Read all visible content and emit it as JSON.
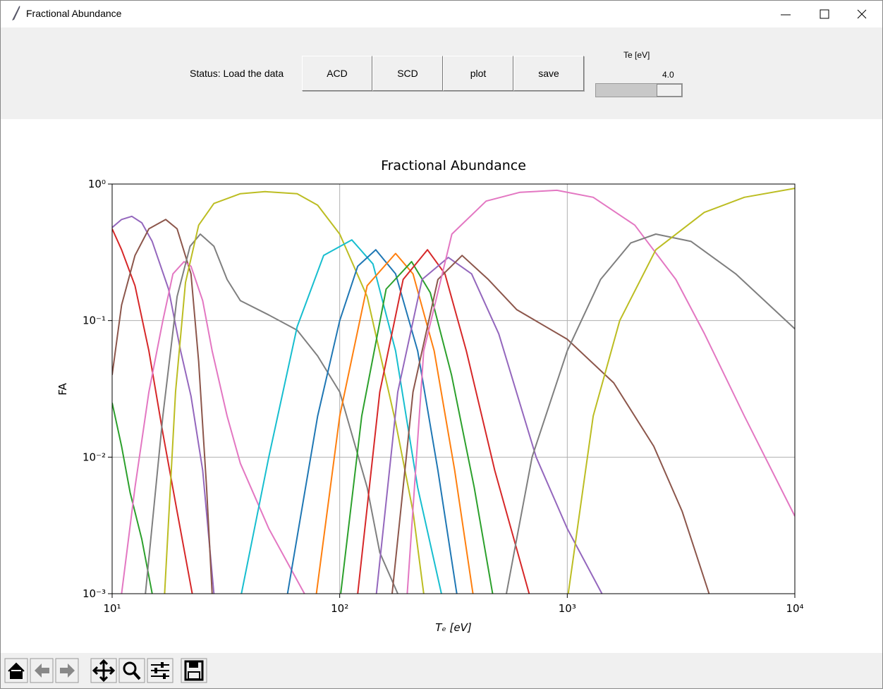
{
  "window": {
    "title": "Fractional Abundance",
    "status": "Status: Load the data",
    "buttons": [
      "ACD",
      "SCD",
      "plot",
      "save"
    ],
    "slider_label": "Te [eV]",
    "slider_value": "4.0"
  },
  "chart_data": {
    "type": "line",
    "title": "Fractional Abundance",
    "x_label": "Tₑ [eV]",
    "y_label": "FA",
    "xscale": "log",
    "yscale": "log",
    "grid": true,
    "xlim": [
      10,
      10000
    ],
    "ylim": [
      0.001,
      1
    ],
    "xticks": [
      {
        "value": 10,
        "label": "10¹"
      },
      {
        "value": 100,
        "label": "10²"
      },
      {
        "value": 1000,
        "label": "10³"
      },
      {
        "value": 10000,
        "label": "10⁴"
      }
    ],
    "yticks": [
      {
        "value": 1,
        "label": "10⁰"
      },
      {
        "value": 0.1,
        "label": "10⁻¹"
      },
      {
        "value": 0.01,
        "label": "10⁻²"
      },
      {
        "value": 0.001,
        "label": "10⁻³"
      }
    ],
    "series": [
      {
        "color": "#2ca02c",
        "x": [
          10,
          11,
          12,
          13.5,
          15
        ],
        "values": [
          0.025,
          0.012,
          0.0055,
          0.0025,
          0.001
        ]
      },
      {
        "color": "#d62728",
        "x": [
          10,
          11,
          12.6,
          14.5,
          16.7,
          19.3,
          22.5
        ],
        "values": [
          0.47,
          0.33,
          0.18,
          0.06,
          0.015,
          0.004,
          0.001
        ]
      },
      {
        "color": "#9467bd",
        "x": [
          10,
          11,
          12.2,
          13.5,
          15,
          17.7,
          20,
          22.2,
          25,
          28
        ],
        "values": [
          0.48,
          0.55,
          0.58,
          0.52,
          0.38,
          0.17,
          0.06,
          0.028,
          0.008,
          0.001
        ]
      },
      {
        "color": "#8c564b",
        "x": [
          10,
          11,
          12.6,
          14.5,
          17.2,
          19.3,
          22.2,
          24,
          26,
          27.5
        ],
        "values": [
          0.04,
          0.13,
          0.3,
          0.47,
          0.55,
          0.47,
          0.22,
          0.05,
          0.006,
          0.001
        ]
      },
      {
        "color": "#e377c2",
        "x": [
          11,
          12.6,
          14.5,
          16.7,
          18.5,
          20.7,
          22.2,
          25,
          27.5,
          32,
          36.6,
          48.8,
          70
        ],
        "values": [
          0.001,
          0.006,
          0.03,
          0.1,
          0.22,
          0.27,
          0.25,
          0.14,
          0.06,
          0.02,
          0.009,
          0.003,
          0.001
        ]
      },
      {
        "color": "#7f7f7f",
        "x": [
          14,
          16.7,
          19.3,
          22,
          24.4,
          28,
          32,
          36.6,
          48.8,
          65,
          80,
          100,
          132,
          150,
          180
        ],
        "values": [
          0.001,
          0.02,
          0.15,
          0.35,
          0.43,
          0.35,
          0.2,
          0.14,
          0.11,
          0.085,
          0.055,
          0.03,
          0.006,
          0.002,
          0.001
        ]
      },
      {
        "color": "#bcbd22",
        "x": [
          17,
          19,
          21,
          24,
          28,
          36.6,
          47,
          65,
          80,
          100,
          132,
          176,
          210,
          234
        ],
        "values": [
          0.001,
          0.03,
          0.19,
          0.5,
          0.72,
          0.85,
          0.88,
          0.85,
          0.7,
          0.43,
          0.15,
          0.018,
          0.004,
          0.001
        ]
      },
      {
        "color": "#17becf",
        "x": [
          37,
          48.8,
          65,
          85,
          113,
          140,
          176,
          220,
          280
        ],
        "values": [
          0.001,
          0.01,
          0.09,
          0.3,
          0.39,
          0.26,
          0.06,
          0.006,
          0.001
        ]
      },
      {
        "color": "#1f77b4",
        "x": [
          59,
          80,
          100,
          120,
          144,
          176,
          220,
          270,
          327
        ],
        "values": [
          0.001,
          0.02,
          0.1,
          0.25,
          0.33,
          0.22,
          0.06,
          0.008,
          0.001
        ]
      },
      {
        "color": "#ff7f0e",
        "x": [
          79,
          100,
          132,
          176,
          210,
          260,
          320,
          385
        ],
        "values": [
          0.001,
          0.02,
          0.18,
          0.31,
          0.22,
          0.06,
          0.008,
          0.001
        ]
      },
      {
        "color": "#2ca02c",
        "x": [
          101,
          125,
          160,
          207,
          250,
          310,
          390,
          470
        ],
        "values": [
          0.001,
          0.02,
          0.17,
          0.27,
          0.16,
          0.04,
          0.006,
          0.001
        ]
      },
      {
        "color": "#d62728",
        "x": [
          120,
          150,
          190,
          243,
          290,
          360,
          480,
          680
        ],
        "values": [
          0.001,
          0.03,
          0.2,
          0.33,
          0.22,
          0.06,
          0.008,
          0.001
        ]
      },
      {
        "color": "#9467bd",
        "x": [
          145,
          180,
          230,
          300,
          380,
          500,
          730,
          1000,
          1420
        ],
        "values": [
          0.001,
          0.03,
          0.2,
          0.29,
          0.22,
          0.08,
          0.01,
          0.003,
          0.001
        ]
      },
      {
        "color": "#8c564b",
        "x": [
          170,
          210,
          270,
          345,
          450,
          600,
          1000,
          1600,
          2400,
          3200,
          4200
        ],
        "values": [
          0.001,
          0.03,
          0.2,
          0.3,
          0.2,
          0.12,
          0.073,
          0.035,
          0.012,
          0.004,
          0.001
        ]
      },
      {
        "color": "#e377c2",
        "x": [
          198,
          234,
          311,
          440,
          620,
          900,
          1300,
          1980,
          3000,
          4010,
          6000,
          10000
        ],
        "values": [
          0.001,
          0.06,
          0.43,
          0.75,
          0.87,
          0.9,
          0.8,
          0.5,
          0.2,
          0.08,
          0.02,
          0.0037
        ]
      },
      {
        "color": "#7f7f7f",
        "x": [
          540,
          700,
          1000,
          1400,
          1900,
          2450,
          3500,
          5500,
          10000
        ],
        "values": [
          0.001,
          0.01,
          0.06,
          0.2,
          0.37,
          0.43,
          0.38,
          0.22,
          0.087
        ]
      },
      {
        "color": "#bcbd22",
        "x": [
          1010,
          1300,
          1700,
          2450,
          4000,
          6000,
          10000
        ],
        "values": [
          0.001,
          0.02,
          0.1,
          0.33,
          0.62,
          0.8,
          0.93
        ]
      }
    ]
  }
}
